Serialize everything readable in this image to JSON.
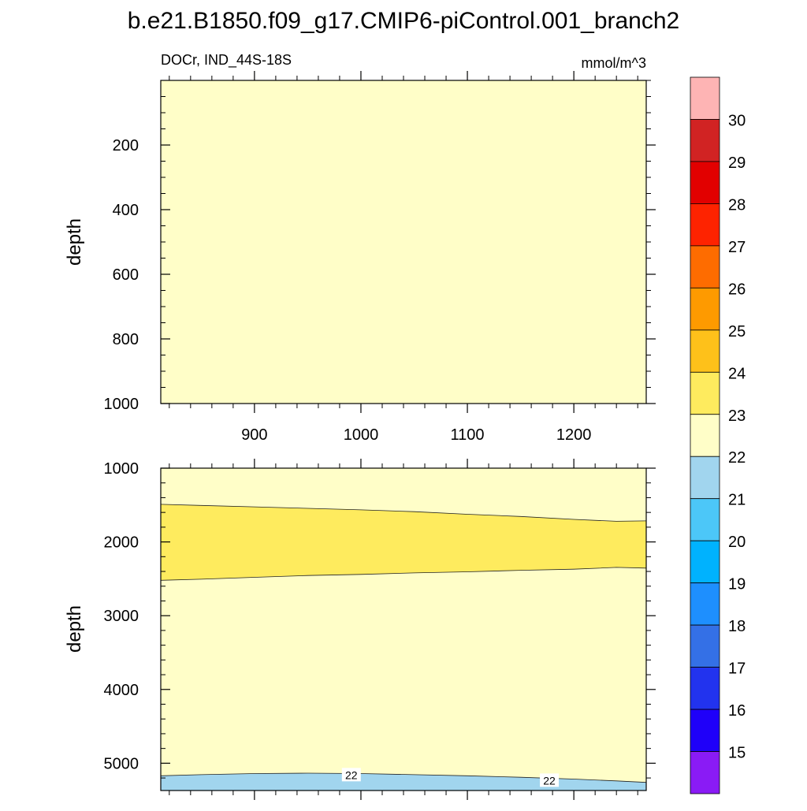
{
  "title": "b.e21.B1850.f09_g17.CMIP6-piControl.001_branch2",
  "chart_data": [
    {
      "type": "contour",
      "panel": "upper",
      "left_label": "DOCr, IND_44S-18S",
      "right_label": "mmol/m^3",
      "ylabel": "depth",
      "xlabel": "",
      "xlim": [
        812,
        1268
      ],
      "ylim": [
        1000,
        0
      ],
      "xticks": [
        900,
        1000,
        1100,
        1200
      ],
      "xtick_labels": [
        "900",
        "1000",
        "1100",
        "1200"
      ],
      "yticks": [
        200,
        400,
        600,
        800,
        1000
      ],
      "ytick_labels": [
        "200",
        "400",
        "600",
        "800",
        "1000"
      ],
      "bands": [
        {
          "range": "22-23",
          "color": "#fffec8",
          "top": [
            [
              812,
              0
            ],
            [
              1268,
              0
            ]
          ],
          "bottom": [
            [
              812,
              1000
            ],
            [
              1268,
              1000
            ]
          ]
        }
      ],
      "contour_labels": []
    },
    {
      "type": "contour",
      "panel": "lower",
      "ylabel": "depth",
      "xlabel": "",
      "xlim": [
        812,
        1268
      ],
      "ylim": [
        5370,
        1000
      ],
      "xticks": [
        900,
        1000,
        1100,
        1200
      ],
      "yticks": [
        1000,
        2000,
        3000,
        4000,
        5000
      ],
      "ytick_labels": [
        "1000",
        "2000",
        "3000",
        "4000",
        "5000"
      ],
      "bands": [
        {
          "range": "22-23",
          "color": "#fffec8",
          "top": [
            [
              812,
              1000
            ],
            [
              1268,
              1000
            ]
          ],
          "bottom": [
            [
              812,
              5370
            ],
            [
              1268,
              5370
            ]
          ]
        },
        {
          "range": "23-24",
          "color": "#feeb5e",
          "top": [
            [
              812,
              1490
            ],
            [
              850,
              1505
            ],
            [
              900,
              1525
            ],
            [
              950,
              1545
            ],
            [
              1000,
              1565
            ],
            [
              1050,
              1590
            ],
            [
              1100,
              1625
            ],
            [
              1150,
              1655
            ],
            [
              1200,
              1695
            ],
            [
              1240,
              1720
            ],
            [
              1268,
              1715
            ]
          ],
          "bottom": [
            [
              812,
              2520
            ],
            [
              850,
              2505
            ],
            [
              900,
              2480
            ],
            [
              950,
              2455
            ],
            [
              1000,
              2440
            ],
            [
              1050,
              2420
            ],
            [
              1100,
              2405
            ],
            [
              1150,
              2385
            ],
            [
              1200,
              2370
            ],
            [
              1240,
              2345
            ],
            [
              1268,
              2355
            ]
          ]
        },
        {
          "range": "21-22",
          "color": "#a1d5ee",
          "top": [
            [
              812,
              5170
            ],
            [
              850,
              5155
            ],
            [
              900,
              5140
            ],
            [
              950,
              5135
            ],
            [
              1000,
              5140
            ],
            [
              1050,
              5155
            ],
            [
              1100,
              5170
            ],
            [
              1150,
              5190
            ],
            [
              1200,
              5215
            ],
            [
              1240,
              5240
            ],
            [
              1268,
              5260
            ]
          ],
          "bottom": [
            [
              812,
              5370
            ],
            [
              1268,
              5370
            ]
          ]
        }
      ],
      "contour_labels": [
        {
          "text": "22",
          "x": 991,
          "y": 5160
        },
        {
          "text": "22",
          "x": 1177,
          "y": 5235
        }
      ]
    }
  ],
  "colorbar": {
    "levels": [
      "15",
      "16",
      "17",
      "18",
      "19",
      "20",
      "21",
      "22",
      "23",
      "24",
      "25",
      "26",
      "27",
      "28",
      "29",
      "30"
    ],
    "colors": [
      "#8a1bf5",
      "#1f00f9",
      "#2233ee",
      "#3470e6",
      "#1e8ffe",
      "#00b2fe",
      "#4cc7f8",
      "#a1d5ee",
      "#fffec8",
      "#feeb5e",
      "#fec11a",
      "#fe9a00",
      "#fe6c00",
      "#fe2300",
      "#e20000",
      "#d12323",
      "#feb4b4"
    ]
  }
}
